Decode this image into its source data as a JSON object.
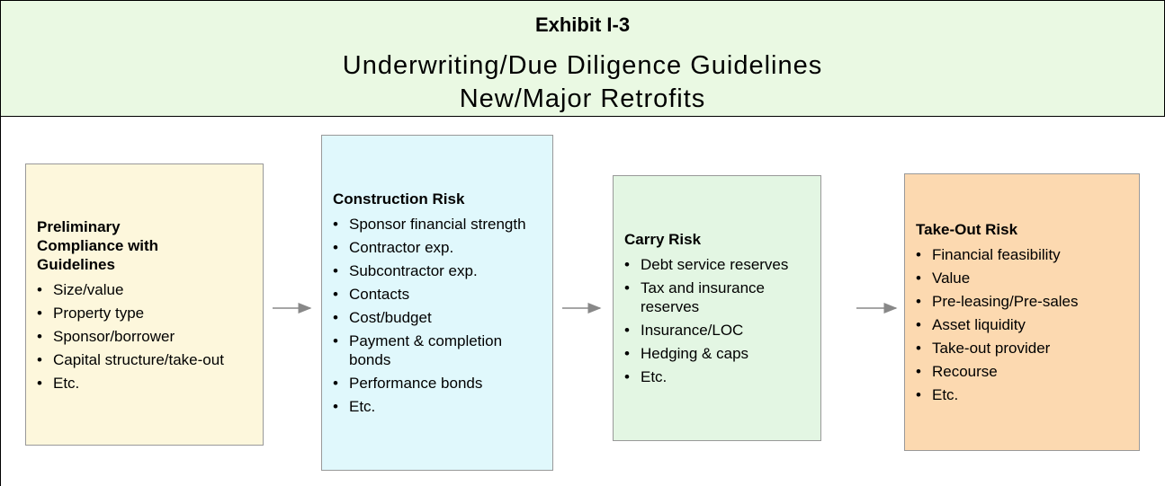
{
  "header": {
    "title": "Exhibit I-3",
    "subtitle_lines": [
      "Underwriting/Due Diligence Guidelines",
      "New/Major Retrofits"
    ]
  },
  "boxes": [
    {
      "title": "Preliminary Compliance with Guidelines",
      "items": [
        "Size/value",
        "Property type",
        "Sponsor/borrower",
        "Capital structure/take-out",
        "Etc."
      ]
    },
    {
      "title": "Construction Risk",
      "items": [
        "Sponsor financial strength",
        "Contractor exp.",
        "Subcontractor exp.",
        "Contacts",
        "Cost/budget",
        "Payment & completion bonds",
        "Performance bonds",
        "Etc."
      ]
    },
    {
      "title": "Carry Risk",
      "items": [
        "Debt service reserves",
        "Tax and insurance reserves",
        "Insurance/LOC",
        "Hedging & caps",
        "Etc."
      ]
    },
    {
      "title": "Take-Out Risk",
      "items": [
        "Financial feasibility",
        "Value",
        "Pre-leasing/Pre-sales",
        "Asset liquidity",
        "Take-out provider",
        "Recourse",
        "Etc."
      ]
    }
  ]
}
